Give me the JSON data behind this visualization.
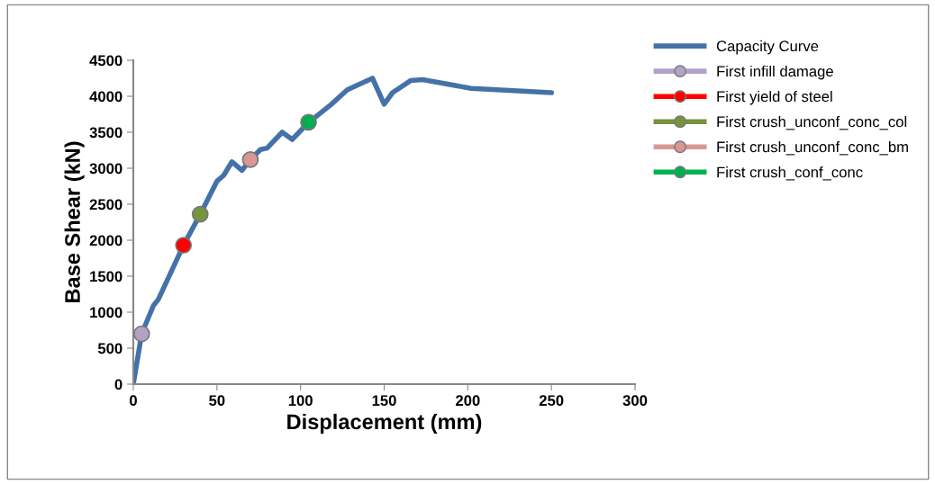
{
  "chart_data": {
    "type": "line",
    "xlabel": "Displacement (mm)",
    "ylabel": "Base Shear (kN)",
    "xlim": [
      0,
      300
    ],
    "xticks": [
      0,
      50,
      100,
      150,
      200,
      250,
      300
    ],
    "ylim": [
      0,
      4500
    ],
    "yticks": [
      0,
      500,
      1000,
      1500,
      2000,
      2500,
      3000,
      3500,
      4000,
      4500
    ],
    "grid": false,
    "legend": "right",
    "series": [
      {
        "name": "Capacity Curve",
        "color": "#4472a8",
        "marker": "none",
        "x": [
          0,
          5,
          12,
          15,
          30,
          40,
          50,
          54,
          59,
          65,
          70,
          76,
          80,
          89,
          95,
          105,
          118,
          128,
          143,
          150,
          155,
          166,
          173,
          202,
          250
        ],
        "values": [
          0,
          700,
          1090,
          1180,
          1930,
          2360,
          2820,
          2900,
          3090,
          2970,
          3120,
          3260,
          3280,
          3500,
          3400,
          3640,
          3880,
          4090,
          4250,
          3890,
          4050,
          4220,
          4230,
          4110,
          4050
        ]
      },
      {
        "name": "First infill damage",
        "color": "#b3a2c7",
        "type": "scatter",
        "marker": "circle",
        "x": [
          5
        ],
        "values": [
          700
        ]
      },
      {
        "name": "First yield of steel",
        "color": "#ff0000",
        "type": "scatter",
        "marker": "circle",
        "x": [
          30
        ],
        "values": [
          1930
        ]
      },
      {
        "name": "First crush_unconf_conc_col",
        "color": "#77933c",
        "type": "scatter",
        "marker": "circle",
        "x": [
          40
        ],
        "values": [
          2360
        ]
      },
      {
        "name": "First crush_unconf_conc_bm",
        "color": "#d99694",
        "type": "scatter",
        "marker": "circle",
        "x": [
          70
        ],
        "values": [
          3120
        ]
      },
      {
        "name": "First crush_conf_conc",
        "color": "#00b050",
        "type": "scatter",
        "marker": "circle",
        "x": [
          104.8
        ],
        "values": [
          3640
        ]
      }
    ]
  }
}
